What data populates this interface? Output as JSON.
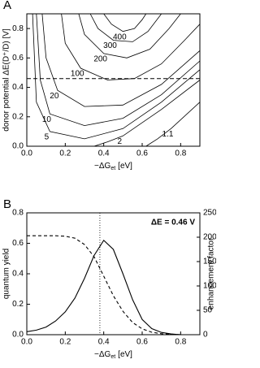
{
  "chart_data": [
    {
      "type": "contour",
      "panel_label": "A",
      "xlabel": "−ΔG",
      "xlabel_sub": "et",
      "xlabel_unit": "[eV]",
      "ylabel": "donor potential  ΔE(D⁺/D) [V]",
      "xlim": [
        0,
        0.9
      ],
      "ylim": [
        0,
        0.9
      ],
      "xticks": [
        {
          "value": 0,
          "label": "0.0"
        },
        0.2,
        0.4,
        0.6,
        0.8
      ],
      "yticks": [
        {
          "value": 0,
          "label": "0.0"
        },
        0.2,
        0.4,
        0.6,
        0.8
      ],
      "hline": 0.46,
      "contours": [
        {
          "level": 400,
          "x": [
            0.4,
            0.44,
            0.5,
            0.56,
            0.6,
            0.62
          ],
          "y": [
            0.9,
            0.83,
            0.78,
            0.8,
            0.86,
            0.9
          ]
        },
        {
          "level": 300,
          "x": [
            0.33,
            0.37,
            0.45,
            0.55,
            0.63,
            0.7
          ],
          "y": [
            0.9,
            0.8,
            0.72,
            0.71,
            0.78,
            0.9
          ]
        },
        {
          "level": 200,
          "x": [
            0.27,
            0.3,
            0.4,
            0.52,
            0.64,
            0.74,
            0.8
          ],
          "y": [
            0.9,
            0.76,
            0.63,
            0.6,
            0.66,
            0.8,
            0.9
          ]
        },
        {
          "level": 100,
          "x": [
            0.18,
            0.2,
            0.28,
            0.42,
            0.56,
            0.7,
            0.82,
            0.9
          ],
          "y": [
            0.9,
            0.7,
            0.53,
            0.45,
            0.46,
            0.56,
            0.72,
            0.83
          ]
        },
        {
          "level": 20,
          "x": [
            0.08,
            0.1,
            0.16,
            0.3,
            0.5,
            0.7,
            0.9
          ],
          "y": [
            0.9,
            0.6,
            0.38,
            0.27,
            0.28,
            0.42,
            0.65
          ]
        },
        {
          "level": 10,
          "x": [
            0.05,
            0.07,
            0.12,
            0.3,
            0.5,
            0.7,
            0.9
          ],
          "y": [
            0.9,
            0.45,
            0.22,
            0.14,
            0.19,
            0.35,
            0.58
          ]
        },
        {
          "level": 5,
          "x": [
            0.03,
            0.05,
            0.12,
            0.3,
            0.5,
            0.7,
            0.9
          ],
          "y": [
            0.9,
            0.3,
            0.1,
            0.05,
            0.12,
            0.3,
            0.52
          ]
        },
        {
          "level": 2,
          "x": [
            0.35,
            0.42,
            0.5,
            0.7,
            0.9
          ],
          "y": [
            0.0,
            0.03,
            0.07,
            0.25,
            0.45
          ]
        },
        {
          "level": 1.1,
          "x": [
            0.62,
            0.68,
            0.75,
            0.9
          ],
          "y": [
            0.0,
            0.05,
            0.12,
            0.3
          ]
        }
      ]
    },
    {
      "type": "line",
      "panel_label": "B",
      "xlabel": "−ΔG",
      "xlabel_sub": "et",
      "xlabel_unit": "[eV]",
      "ylabel": "quantum yield",
      "y2label": "enhancement factor",
      "annotation": "ΔE = 0.46 V",
      "xlim": [
        0,
        0.9
      ],
      "ylim": [
        0,
        0.8
      ],
      "y2lim": [
        0,
        250
      ],
      "xticks": [
        {
          "value": 0,
          "label": "0.0"
        },
        0.2,
        0.4,
        0.6,
        0.8
      ],
      "yticks": [
        {
          "value": 0,
          "label": "0.0"
        },
        0.2,
        0.4,
        0.6,
        0.8
      ],
      "y2ticks": [
        0,
        50,
        100,
        150,
        200,
        250
      ],
      "vline": 0.38,
      "x": [
        0,
        0.05,
        0.1,
        0.15,
        0.2,
        0.25,
        0.3,
        0.35,
        0.4,
        0.45,
        0.5,
        0.55,
        0.6,
        0.65,
        0.7,
        0.75,
        0.8,
        0.85,
        0.9
      ],
      "series": [
        {
          "color": "#000000",
          "dash": false,
          "values": [
            0.02,
            0.03,
            0.05,
            0.09,
            0.15,
            0.24,
            0.37,
            0.52,
            0.62,
            0.56,
            0.4,
            0.23,
            0.1,
            0.04,
            0.015,
            0.005,
            0,
            0,
            0
          ]
        },
        {
          "color": "#000000",
          "dash": true,
          "axis": "y2",
          "values": [
            203,
            203,
            203,
            203,
            202,
            198,
            185,
            160,
            120,
            80,
            48,
            25,
            12,
            5,
            2,
            1,
            0,
            0,
            0
          ]
        }
      ]
    }
  ]
}
